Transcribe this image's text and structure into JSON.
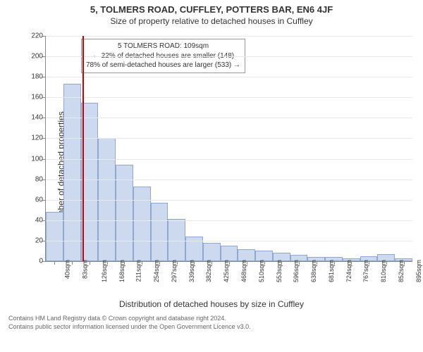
{
  "title_line1": "5, TOLMERS ROAD, CUFFLEY, POTTERS BAR, EN6 4JF",
  "title_line2": "Size of property relative to detached houses in Cuffley",
  "ylabel": "Number of detached properties",
  "xlabel": "Distribution of detached houses by size in Cuffley",
  "footer_line1": "Contains HM Land Registry data © Crown copyright and database right 2024.",
  "footer_line2": "Contains public sector information licensed under the Open Government Licence v3.0.",
  "chart": {
    "type": "histogram",
    "ylim": [
      0,
      220
    ],
    "ytick_step": 20,
    "background_color": "#ffffff",
    "grid_color": "#e8e8e8",
    "axis_color": "#888888",
    "bar_fill": "#ccd9ee",
    "bar_border": "#8fa8d0",
    "bar_border_width": 1,
    "reference_line_color": "#cc0000",
    "reference_value_sqm": 109,
    "x_labels": [
      "40sqm",
      "83sqm",
      "126sqm",
      "168sqm",
      "211sqm",
      "254sqm",
      "297sqm",
      "339sqm",
      "382sqm",
      "425sqm",
      "468sqm",
      "510sqm",
      "553sqm",
      "596sqm",
      "638sqm",
      "681sqm",
      "724sqm",
      "767sqm",
      "810sqm",
      "852sqm",
      "895sqm"
    ],
    "values": [
      48,
      173,
      155,
      120,
      94,
      73,
      57,
      41,
      24,
      18,
      15,
      12,
      10,
      8,
      6,
      4,
      4,
      3,
      5,
      7,
      3
    ],
    "bar_width_ratio": 1.0,
    "annotation": {
      "line1": "5 TOLMERS ROAD: 109sqm",
      "line2": "← 22% of detached houses are smaller (148)",
      "line3": "78% of semi-detached houses are larger (533) →",
      "border_color": "#999999",
      "font_size": 10
    }
  }
}
